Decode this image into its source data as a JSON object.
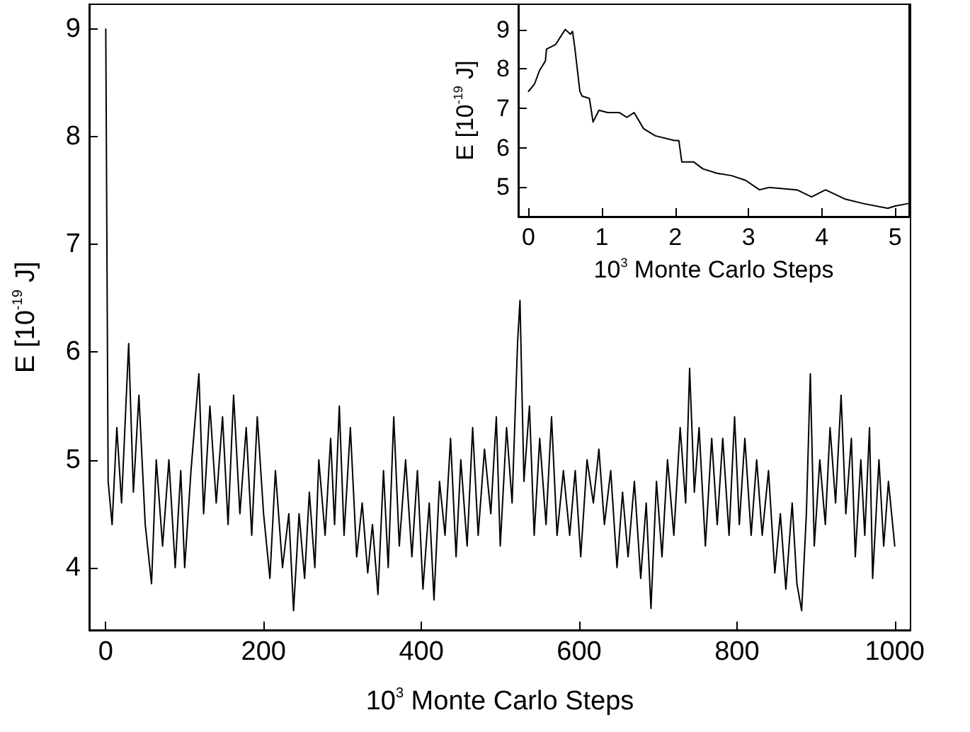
{
  "chart_data": [
    {
      "type": "line",
      "xlabel": "10$^{3}$ Monte Carlo Steps",
      "ylabel": "E [10$^{-19}$ J]",
      "xlim": [
        -21,
        1020
      ],
      "ylim": [
        3.42,
        9.23
      ],
      "xticks": [
        0,
        200,
        400,
        600,
        800,
        1000
      ],
      "yticks": [
        4,
        5,
        6,
        7,
        8,
        9
      ],
      "marker": "none",
      "line_style": "solid",
      "series": [
        {
          "color": "#000000",
          "x": [
            0,
            3,
            8,
            14,
            20,
            29,
            35,
            42,
            50,
            58,
            64,
            72,
            80,
            88,
            95,
            100,
            108,
            118,
            124,
            132,
            140,
            148,
            155,
            162,
            170,
            178,
            185,
            192,
            200,
            208,
            215,
            224,
            232,
            238,
            245,
            252,
            258,
            265,
            270,
            278,
            285,
            290,
            296,
            302,
            310,
            318,
            325,
            332,
            338,
            345,
            352,
            358,
            365,
            372,
            380,
            388,
            395,
            402,
            410,
            416,
            423,
            430,
            437,
            444,
            450,
            458,
            465,
            472,
            480,
            488,
            495,
            500,
            508,
            515,
            522,
            525,
            530,
            537,
            543,
            550,
            558,
            565,
            572,
            580,
            588,
            595,
            602,
            610,
            618,
            625,
            632,
            640,
            648,
            655,
            662,
            670,
            678,
            685,
            691,
            698,
            705,
            712,
            720,
            728,
            735,
            740,
            746,
            752,
            760,
            768,
            775,
            782,
            790,
            797,
            803,
            810,
            818,
            825,
            832,
            840,
            848,
            855,
            862,
            870,
            876,
            882,
            888,
            893,
            898,
            905,
            912,
            918,
            925,
            932,
            938,
            945,
            950,
            957,
            962,
            968,
            972,
            980,
            986,
            992,
            1000
          ],
          "values": [
            9.0,
            4.8,
            4.4,
            5.3,
            4.6,
            6.08,
            4.7,
            5.6,
            4.4,
            3.85,
            5.0,
            4.2,
            5.0,
            4.0,
            4.9,
            4.0,
            4.9,
            5.8,
            4.5,
            5.5,
            4.6,
            5.4,
            4.4,
            5.6,
            4.5,
            5.3,
            4.3,
            5.4,
            4.5,
            3.9,
            4.9,
            4.0,
            4.5,
            3.6,
            4.5,
            3.9,
            4.7,
            4.0,
            5.0,
            4.3,
            5.2,
            4.4,
            5.5,
            4.3,
            5.3,
            4.1,
            4.6,
            3.95,
            4.4,
            3.75,
            4.9,
            4.0,
            5.4,
            4.2,
            5.0,
            4.1,
            4.9,
            3.8,
            4.6,
            3.7,
            4.8,
            4.3,
            5.2,
            4.1,
            5.0,
            4.2,
            5.3,
            4.3,
            5.1,
            4.5,
            5.4,
            4.2,
            5.3,
            4.6,
            6.1,
            6.48,
            4.8,
            5.5,
            4.3,
            5.2,
            4.4,
            5.4,
            4.3,
            4.9,
            4.3,
            4.9,
            4.1,
            5.0,
            4.6,
            5.1,
            4.4,
            4.9,
            4.0,
            4.7,
            4.1,
            4.8,
            3.9,
            4.6,
            3.62,
            4.8,
            4.1,
            5.0,
            4.3,
            5.3,
            4.6,
            5.85,
            4.7,
            5.3,
            4.2,
            5.2,
            4.4,
            5.2,
            4.3,
            5.4,
            4.4,
            5.2,
            4.3,
            5.0,
            4.3,
            4.9,
            3.95,
            4.5,
            3.8,
            4.6,
            3.85,
            3.6,
            4.5,
            5.8,
            4.2,
            5.0,
            4.4,
            5.3,
            4.6,
            5.6,
            4.5,
            5.2,
            4.1,
            5.0,
            4.3,
            5.3,
            3.9,
            5.0,
            4.2,
            4.8,
            4.2
          ]
        }
      ]
    },
    {
      "type": "line",
      "xlabel": "10$^{3}$ Monte Carlo Steps",
      "ylabel": "E [10$^{-19}$ J]",
      "xlim": [
        -0.14,
        5.19
      ],
      "ylim": [
        4.25,
        9.64
      ],
      "xticks": [
        0,
        1,
        2,
        3,
        4,
        5
      ],
      "yticks": [
        5,
        6,
        7,
        8,
        9
      ],
      "marker": "none",
      "line_style": "solid",
      "series": [
        {
          "color": "#000000",
          "x": [
            0,
            0.08,
            0.15,
            0.23,
            0.245,
            0.37,
            0.5,
            0.57,
            0.6,
            0.63,
            0.7,
            0.73,
            0.83,
            0.88,
            0.96,
            1.08,
            1.24,
            1.34,
            1.44,
            1.57,
            1.73,
            1.99,
            2.05,
            2.09,
            2.25,
            2.38,
            2.57,
            2.77,
            2.96,
            3.15,
            3.28,
            3.66,
            3.86,
            4.05,
            4.31,
            4.57,
            4.9,
            5.0,
            5.17
          ],
          "values": [
            7.43,
            7.61,
            7.96,
            8.2,
            8.5,
            8.62,
            9.0,
            8.88,
            8.95,
            8.55,
            7.43,
            7.31,
            7.25,
            6.65,
            6.95,
            6.89,
            6.89,
            6.77,
            6.89,
            6.48,
            6.3,
            6.18,
            6.18,
            5.64,
            5.64,
            5.46,
            5.35,
            5.29,
            5.17,
            4.93,
            4.99,
            4.93,
            4.75,
            4.93,
            4.7,
            4.58,
            4.46,
            4.52,
            4.58
          ]
        }
      ]
    }
  ]
}
